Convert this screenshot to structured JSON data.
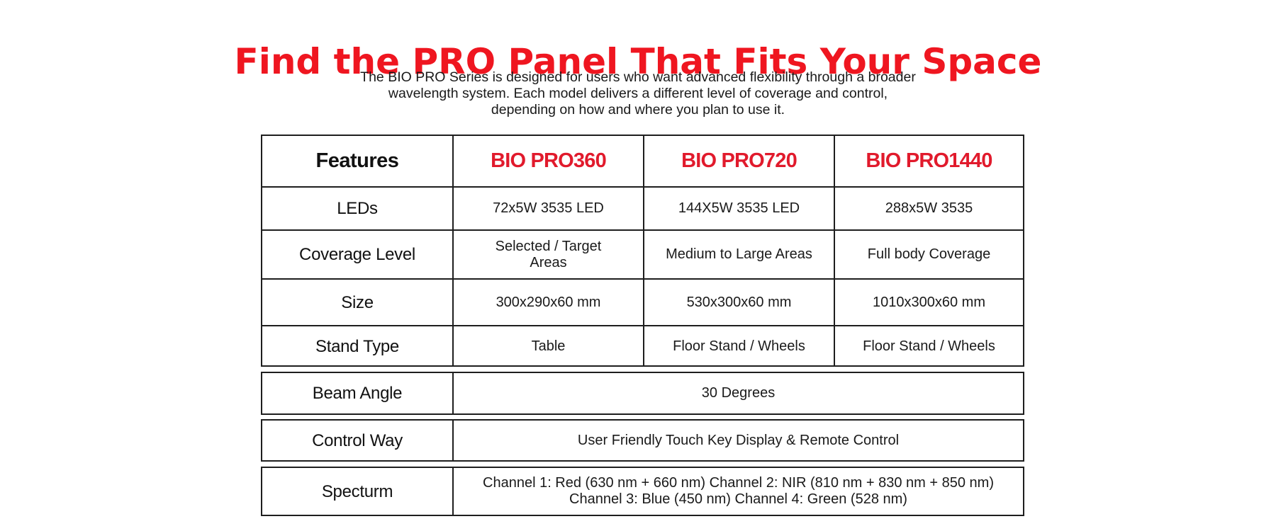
{
  "title": "Find the PRO Panel That Fits Your Space",
  "intro": {
    "line1": "The BIO PRO Series is designed for users who want advanced flexibility through a broader",
    "line2": "wavelength system. Each model delivers a different level of coverage and control,",
    "line3": "depending on how and where you plan to use it."
  },
  "table": {
    "headers": {
      "features": "Features",
      "model1": "BIO PRO360",
      "model2": "BIO PRO720",
      "model3": "BIO PRO1440"
    },
    "rows": [
      {
        "feature": "LEDs",
        "values": [
          "72x5W 3535 LED",
          "144X5W 3535 LED",
          "288x5W 3535"
        ]
      },
      {
        "feature": "Coverage Level",
        "values": [
          "Selected / Target Areas",
          "Medium to Large Areas",
          "Full body Coverage"
        ],
        "split": [
          "Selected / Target",
          "Areas"
        ]
      },
      {
        "feature": "Size",
        "values": [
          "300x290x60 mm",
          "530x300x60 mm",
          "1010x300x60 mm"
        ]
      },
      {
        "feature": "Stand Type",
        "values": [
          "Table",
          "Floor Stand / Wheels",
          "Floor Stand / Wheels"
        ]
      }
    ],
    "beam": {
      "feature": "Beam Angle",
      "value": "30 Degrees"
    },
    "control": {
      "feature": "Control Way",
      "value": "User Friendly Touch Key Display & Remote Control"
    },
    "spectrum": {
      "feature": "Specturm",
      "line1": "Channel 1: Red (630 nm + 660 nm) Channel 2: NIR (810 nm + 830 nm + 850 nm)",
      "line2": "Channel 3: Blue (450 nm) Channel 4: Green (528 nm)"
    }
  },
  "colors": {
    "title": "#ef1620",
    "model_header": "#e11a2c",
    "border": "#1e1e1e"
  }
}
